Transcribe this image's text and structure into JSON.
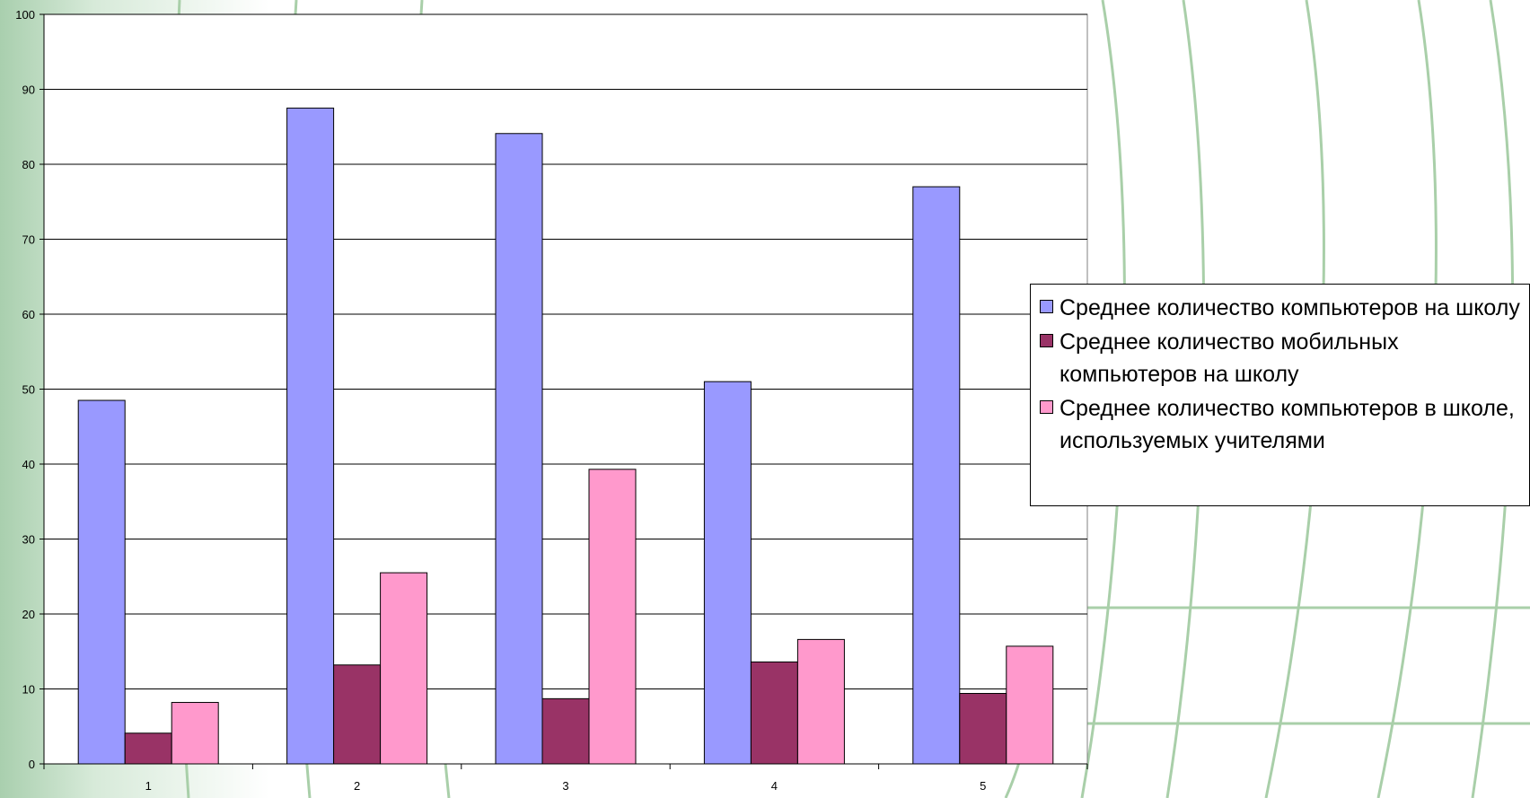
{
  "chart_data": {
    "type": "bar",
    "title": "",
    "xlabel": "",
    "ylabel": "",
    "categories": [
      "1",
      "2",
      "3",
      "4",
      "5"
    ],
    "ylim": [
      0,
      100
    ],
    "yticks": [
      0,
      10,
      20,
      30,
      40,
      50,
      60,
      70,
      80,
      90,
      100
    ],
    "grid": true,
    "legend_position": "right",
    "series": [
      {
        "name": "Среднее количество компьютеров на школу",
        "color": "#9999ff",
        "values": [
          48.5,
          87.5,
          84.1,
          51.0,
          77.0
        ]
      },
      {
        "name": "Среднее количество мобильных компьютеров на школу",
        "color": "#993366",
        "values": [
          4.1,
          13.2,
          8.7,
          13.6,
          9.4
        ]
      },
      {
        "name": "Среднее количество компьютеров в школе, используемых учителями",
        "color": "#ff99cc",
        "values": [
          8.2,
          25.5,
          39.3,
          16.6,
          15.7
        ]
      }
    ]
  }
}
